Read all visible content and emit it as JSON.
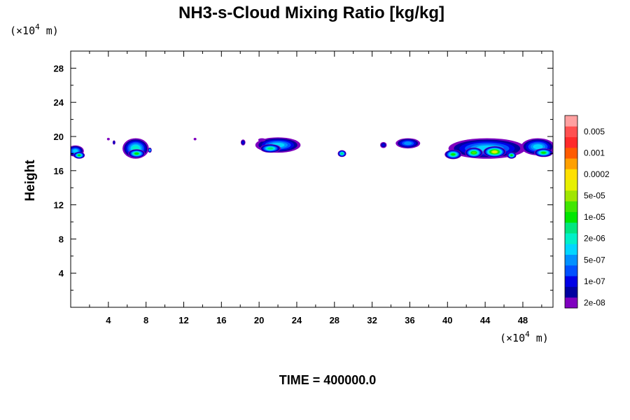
{
  "chart_data": {
    "type": "heatmap",
    "title": "NH3-s-Cloud Mixing Ratio [kg/kg]",
    "ylabel": "Height",
    "x_unit": {
      "prefix": "(×10",
      "exp": "4",
      "suffix": " m)"
    },
    "y_unit": {
      "prefix": "(×10",
      "exp": "4",
      "suffix": " m)"
    },
    "xlim": [
      0,
      51.2
    ],
    "ylim": [
      0,
      30
    ],
    "x_ticks": [
      4,
      8,
      12,
      16,
      20,
      24,
      28,
      32,
      36,
      40,
      44,
      48
    ],
    "x_tick_labels": [
      "4",
      "8",
      "12",
      "16",
      "20",
      "24",
      "28",
      "32",
      "36",
      "40",
      "44",
      "48"
    ],
    "y_ticks": [
      4,
      8,
      12,
      16,
      20,
      24,
      28
    ],
    "y_tick_labels": [
      "4",
      "8",
      "12",
      "16",
      "20",
      "24",
      "28"
    ],
    "x_minor_step": 2,
    "y_minor_step": 2,
    "colorbar": {
      "position": "right",
      "colors": [
        "#7f00bf",
        "#0000a0",
        "#0000e6",
        "#0050ff",
        "#0090ff",
        "#00d6ff",
        "#00f0c8",
        "#00e680",
        "#00e600",
        "#40e600",
        "#a0e600",
        "#e6f000",
        "#ffe000",
        "#ffa000",
        "#ff5a00",
        "#ff2a2a",
        "#ff5050",
        "#ffa0a0"
      ],
      "labels": [
        "2e-08",
        "1e-07",
        "5e-07",
        "2e-06",
        "1e-05",
        "5e-05",
        "0.0002",
        "0.001",
        "0.005"
      ]
    },
    "cloud_cells": [
      {
        "x": 0.5,
        "y": 18.3,
        "width": 1.8,
        "height": 1.3,
        "level": 5
      },
      {
        "x": 0.9,
        "y": 17.8,
        "width": 1.2,
        "height": 0.8,
        "level": 8
      },
      {
        "x": 4.0,
        "y": 19.7,
        "width": 0.3,
        "height": 0.3,
        "level": 0
      },
      {
        "x": 4.6,
        "y": 19.3,
        "width": 0.3,
        "height": 0.5,
        "level": 2
      },
      {
        "x": 6.9,
        "y": 18.6,
        "width": 2.8,
        "height": 2.4,
        "level": 6
      },
      {
        "x": 7.0,
        "y": 18.0,
        "width": 1.8,
        "height": 1.0,
        "level": 8
      },
      {
        "x": 8.4,
        "y": 18.4,
        "width": 0.4,
        "height": 0.6,
        "level": 5
      },
      {
        "x": 13.2,
        "y": 19.7,
        "width": 0.3,
        "height": 0.3,
        "level": 0
      },
      {
        "x": 18.3,
        "y": 19.3,
        "width": 0.5,
        "height": 0.7,
        "level": 2
      },
      {
        "x": 22.0,
        "y": 19.0,
        "width": 4.8,
        "height": 1.8,
        "level": 5
      },
      {
        "x": 21.2,
        "y": 18.6,
        "width": 2.2,
        "height": 1.0,
        "level": 7
      },
      {
        "x": 20.3,
        "y": 19.6,
        "width": 0.8,
        "height": 0.4,
        "level": 0
      },
      {
        "x": 28.8,
        "y": 18.0,
        "width": 0.9,
        "height": 0.8,
        "level": 7
      },
      {
        "x": 33.2,
        "y": 19.0,
        "width": 0.7,
        "height": 0.7,
        "level": 2
      },
      {
        "x": 35.8,
        "y": 19.2,
        "width": 2.6,
        "height": 1.2,
        "level": 4
      },
      {
        "x": 44.2,
        "y": 18.6,
        "width": 8.2,
        "height": 2.4,
        "level": 5
      },
      {
        "x": 40.6,
        "y": 17.9,
        "width": 1.8,
        "height": 1.1,
        "level": 8
      },
      {
        "x": 42.8,
        "y": 18.1,
        "width": 1.9,
        "height": 1.2,
        "level": 9
      },
      {
        "x": 45.0,
        "y": 18.2,
        "width": 2.4,
        "height": 1.3,
        "level": 11
      },
      {
        "x": 46.8,
        "y": 17.8,
        "width": 1.0,
        "height": 0.8,
        "level": 8
      },
      {
        "x": 49.6,
        "y": 18.8,
        "width": 3.6,
        "height": 2.0,
        "level": 5
      },
      {
        "x": 50.2,
        "y": 18.1,
        "width": 2.0,
        "height": 1.0,
        "level": 8
      }
    ]
  },
  "time_label": "TIME = 400000.0"
}
